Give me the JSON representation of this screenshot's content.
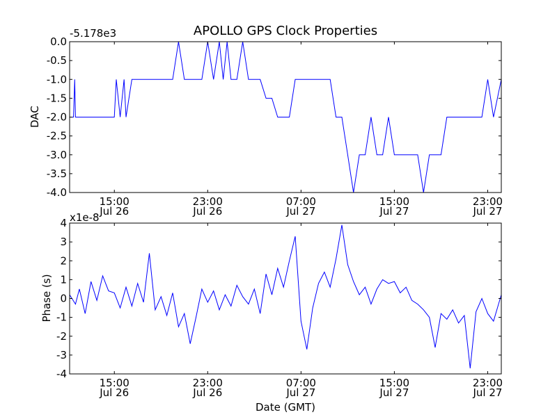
{
  "chart_data": [
    {
      "type": "line",
      "title": "APOLLO GPS Clock Properties",
      "offset_label": "-5.178e3",
      "xlabel": "",
      "ylabel": "DAC",
      "xlim": [
        "2011-07-26 11:10",
        "2011-07-28 00:10"
      ],
      "ylim": [
        -4.0,
        0.0
      ],
      "x_ticks": [
        {
          "time": "2011-07-26 15:00",
          "line1": "15:00",
          "line2": "Jul 26"
        },
        {
          "time": "2011-07-26 23:00",
          "line1": "23:00",
          "line2": "Jul 26"
        },
        {
          "time": "2011-07-27 07:00",
          "line1": "07:00",
          "line2": "Jul 27"
        },
        {
          "time": "2011-07-27 15:00",
          "line1": "15:00",
          "line2": "Jul 27"
        },
        {
          "time": "2011-07-27 23:00",
          "line1": "23:00",
          "line2": "Jul 27"
        }
      ],
      "y_tick_labels": [
        "0.0",
        "-0.5",
        "-1.0",
        "-1.5",
        "-2.0",
        "-2.5",
        "-3.0",
        "-3.5",
        "-4.0"
      ],
      "y_tick_values": [
        0.0,
        -0.5,
        -1.0,
        -1.5,
        -2.0,
        -2.5,
        -3.0,
        -3.5,
        -4.0
      ],
      "line_color": "#0000ff",
      "grid": false,
      "series": [
        {
          "x": [
            "2011-07-26 11:10",
            "2011-07-26 11:30",
            "2011-07-26 11:36",
            "2011-07-26 11:40",
            "2011-07-26 11:50",
            "2011-07-26 12:10",
            "2011-07-26 12:40",
            "2011-07-26 13:00",
            "2011-07-26 13:20",
            "2011-07-26 13:40",
            "2011-07-26 14:00",
            "2011-07-26 14:20",
            "2011-07-26 14:40",
            "2011-07-26 15:00",
            "2011-07-26 15:10",
            "2011-07-26 15:30",
            "2011-07-26 15:50",
            "2011-07-26 16:00",
            "2011-07-26 16:30",
            "2011-07-26 17:00",
            "2011-07-26 17:30",
            "2011-07-26 18:00",
            "2011-07-26 18:30",
            "2011-07-26 19:00",
            "2011-07-26 19:30",
            "2011-07-26 20:00",
            "2011-07-26 20:30",
            "2011-07-26 21:00",
            "2011-07-26 21:30",
            "2011-07-26 22:00",
            "2011-07-26 22:30",
            "2011-07-26 23:00",
            "2011-07-26 23:30",
            "2011-07-27 00:00",
            "2011-07-27 00:20",
            "2011-07-27 00:40",
            "2011-07-27 01:00",
            "2011-07-27 01:30",
            "2011-07-27 02:00",
            "2011-07-27 02:30",
            "2011-07-27 03:00",
            "2011-07-27 03:30",
            "2011-07-27 04:00",
            "2011-07-27 04:30",
            "2011-07-27 05:00",
            "2011-07-27 05:30",
            "2011-07-27 06:00",
            "2011-07-27 06:30",
            "2011-07-27 07:00",
            "2011-07-27 07:30",
            "2011-07-27 08:00",
            "2011-07-27 08:30",
            "2011-07-27 09:00",
            "2011-07-27 09:30",
            "2011-07-27 10:00",
            "2011-07-27 10:30",
            "2011-07-27 11:00",
            "2011-07-27 11:30",
            "2011-07-27 12:00",
            "2011-07-27 12:30",
            "2011-07-27 13:00",
            "2011-07-27 13:30",
            "2011-07-27 14:00",
            "2011-07-27 14:30",
            "2011-07-27 15:00",
            "2011-07-27 15:30",
            "2011-07-27 16:00",
            "2011-07-27 16:30",
            "2011-07-27 17:00",
            "2011-07-27 17:30",
            "2011-07-27 18:00",
            "2011-07-27 18:30",
            "2011-07-27 19:00",
            "2011-07-27 19:30",
            "2011-07-27 20:00",
            "2011-07-27 20:30",
            "2011-07-27 21:00",
            "2011-07-27 21:30",
            "2011-07-27 22:00",
            "2011-07-27 22:30",
            "2011-07-27 23:00",
            "2011-07-27 23:30",
            "2011-07-28 00:10"
          ],
          "values": [
            -2.0,
            -2.0,
            -1.0,
            -2.0,
            -2.0,
            -2.0,
            -2.0,
            -2.0,
            -2.0,
            -2.0,
            -2.0,
            -2.0,
            -2.0,
            -2.0,
            -1.0,
            -2.0,
            -1.0,
            -2.0,
            -1.0,
            -1.0,
            -1.0,
            -1.0,
            -1.0,
            -1.0,
            -1.0,
            -1.0,
            0.0,
            -1.0,
            -1.0,
            -1.0,
            -1.0,
            0.0,
            -1.0,
            0.0,
            -1.0,
            0.0,
            -1.0,
            -1.0,
            0.0,
            -1.0,
            -1.0,
            -1.0,
            -1.5,
            -1.5,
            -2.0,
            -2.0,
            -2.0,
            -1.0,
            -1.0,
            -1.0,
            -1.0,
            -1.0,
            -1.0,
            -1.0,
            -2.0,
            -2.0,
            -3.0,
            -4.0,
            -3.0,
            -3.0,
            -2.0,
            -3.0,
            -3.0,
            -2.0,
            -3.0,
            -3.0,
            -3.0,
            -3.0,
            -3.0,
            -4.0,
            -3.0,
            -3.0,
            -3.0,
            -2.0,
            -2.0,
            -2.0,
            -2.0,
            -2.0,
            -2.0,
            -2.0,
            -1.0,
            -2.0,
            -1.0
          ]
        }
      ]
    },
    {
      "type": "line",
      "title": "",
      "offset_label": "x1e-8",
      "xlabel": "Date (GMT)",
      "ylabel": "Phase (s)",
      "xlim": [
        "2011-07-26 11:10",
        "2011-07-28 00:10"
      ],
      "ylim": [
        -4,
        4
      ],
      "x_ticks": [
        {
          "time": "2011-07-26 15:00",
          "line1": "15:00",
          "line2": "Jul 26"
        },
        {
          "time": "2011-07-26 23:00",
          "line1": "23:00",
          "line2": "Jul 26"
        },
        {
          "time": "2011-07-27 07:00",
          "line1": "07:00",
          "line2": "Jul 27"
        },
        {
          "time": "2011-07-27 15:00",
          "line1": "15:00",
          "line2": "Jul 27"
        },
        {
          "time": "2011-07-27 23:00",
          "line1": "23:00",
          "line2": "Jul 27"
        }
      ],
      "y_tick_labels": [
        "4",
        "3",
        "2",
        "1",
        "0",
        "-1",
        "-2",
        "-3",
        "-4"
      ],
      "y_tick_values": [
        4,
        3,
        2,
        1,
        0,
        -1,
        -2,
        -3,
        -4
      ],
      "line_color": "#0000ff",
      "grid": false,
      "series": [
        {
          "x": [
            "2011-07-26 11:10",
            "2011-07-26 11:40",
            "2011-07-26 12:00",
            "2011-07-26 12:30",
            "2011-07-26 13:00",
            "2011-07-26 13:30",
            "2011-07-26 14:00",
            "2011-07-26 14:30",
            "2011-07-26 15:00",
            "2011-07-26 15:30",
            "2011-07-26 16:00",
            "2011-07-26 16:30",
            "2011-07-26 17:00",
            "2011-07-26 17:30",
            "2011-07-26 18:00",
            "2011-07-26 18:30",
            "2011-07-26 19:00",
            "2011-07-26 19:30",
            "2011-07-26 20:00",
            "2011-07-26 20:30",
            "2011-07-26 21:00",
            "2011-07-26 21:30",
            "2011-07-26 22:00",
            "2011-07-26 22:30",
            "2011-07-26 23:00",
            "2011-07-26 23:30",
            "2011-07-27 00:00",
            "2011-07-27 00:30",
            "2011-07-27 01:00",
            "2011-07-27 01:30",
            "2011-07-27 02:00",
            "2011-07-27 02:30",
            "2011-07-27 03:00",
            "2011-07-27 03:30",
            "2011-07-27 04:00",
            "2011-07-27 04:30",
            "2011-07-27 05:00",
            "2011-07-27 05:30",
            "2011-07-27 06:00",
            "2011-07-27 06:30",
            "2011-07-27 07:00",
            "2011-07-27 07:30",
            "2011-07-27 08:00",
            "2011-07-27 08:30",
            "2011-07-27 09:00",
            "2011-07-27 09:30",
            "2011-07-27 10:00",
            "2011-07-27 10:30",
            "2011-07-27 11:00",
            "2011-07-27 11:30",
            "2011-07-27 12:00",
            "2011-07-27 12:30",
            "2011-07-27 13:00",
            "2011-07-27 13:30",
            "2011-07-27 14:00",
            "2011-07-27 14:30",
            "2011-07-27 15:00",
            "2011-07-27 15:30",
            "2011-07-27 16:00",
            "2011-07-27 16:30",
            "2011-07-27 17:00",
            "2011-07-27 17:30",
            "2011-07-27 18:00",
            "2011-07-27 18:30",
            "2011-07-27 19:00",
            "2011-07-27 19:30",
            "2011-07-27 20:00",
            "2011-07-27 20:30",
            "2011-07-27 21:00",
            "2011-07-27 21:30",
            "2011-07-27 22:00",
            "2011-07-27 22:30",
            "2011-07-27 23:00",
            "2011-07-27 23:30",
            "2011-07-28 00:10"
          ],
          "values": [
            0.2,
            -0.3,
            0.5,
            -0.8,
            0.9,
            -0.1,
            1.2,
            0.4,
            0.3,
            -0.5,
            0.6,
            -0.4,
            0.8,
            -0.2,
            2.4,
            -0.6,
            0.1,
            -0.9,
            0.3,
            -1.5,
            -0.8,
            -2.4,
            -1.0,
            0.5,
            -0.2,
            0.4,
            -0.6,
            0.2,
            -0.4,
            0.7,
            0.1,
            -0.3,
            0.5,
            -0.8,
            1.3,
            0.2,
            1.6,
            0.6,
            2.0,
            3.3,
            -1.2,
            -2.7,
            -0.5,
            0.8,
            1.4,
            0.6,
            2.1,
            3.9,
            1.8,
            0.9,
            0.2,
            0.6,
            -0.3,
            0.5,
            1.0,
            0.8,
            0.9,
            0.3,
            0.6,
            -0.1,
            -0.3,
            -0.6,
            -1.0,
            -2.6,
            -0.8,
            -1.1,
            -0.6,
            -1.3,
            -0.9,
            -3.7,
            -0.7,
            0.0,
            -0.8,
            -1.2,
            0.2
          ]
        }
      ]
    }
  ]
}
